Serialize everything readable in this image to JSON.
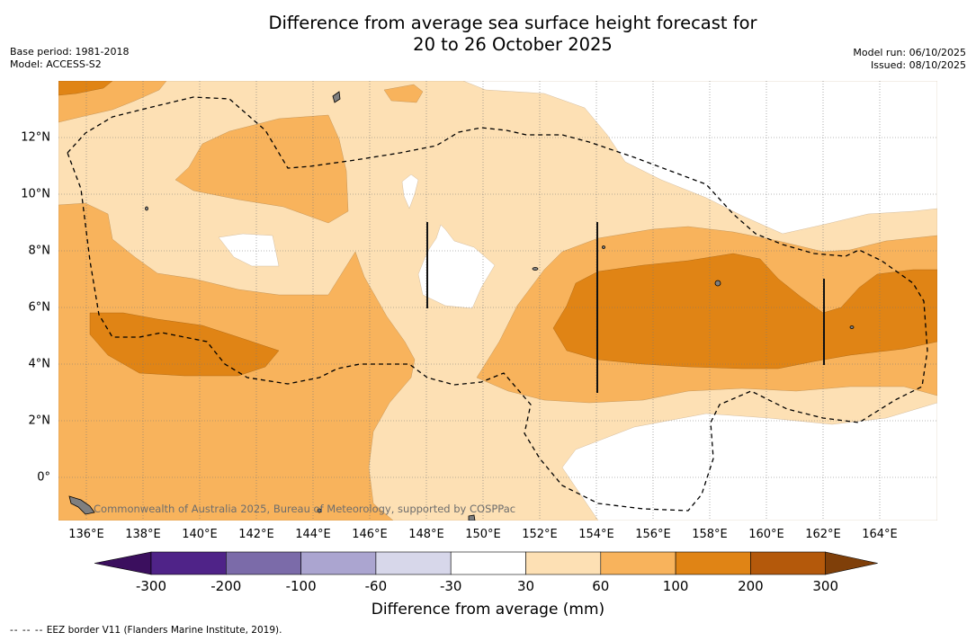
{
  "title": {
    "line1": "Difference from average sea surface height forecast for",
    "line2": "20 to 26 October 2025"
  },
  "meta": {
    "base_period": "Base period: 1981-2018",
    "model": "Model: ACCESS-S2",
    "model_run": "Model run: 06/10/2025",
    "issued": "Issued: 08/10/2025"
  },
  "map": {
    "x_ticks": [
      "136°E",
      "138°E",
      "140°E",
      "142°E",
      "144°E",
      "146°E",
      "148°E",
      "150°E",
      "152°E",
      "154°E",
      "156°E",
      "158°E",
      "160°E",
      "162°E",
      "164°E"
    ],
    "y_ticks": [
      "12°N",
      "10°N",
      "8°N",
      "6°N",
      "4°N",
      "2°N",
      "0°"
    ],
    "credit": "Commonwealth of Australia 2025, Bureau of Meteorology, supported by COSPPac",
    "colors": {
      "c30_60": "#fde0b4",
      "c60_100": "#f8b35c",
      "c100_200": "#e08415",
      "c200_300": "#b4590b",
      "land": "#7f7f7f"
    }
  },
  "colorbar": {
    "labels": [
      "-300",
      "-200",
      "-100",
      "-60",
      "-30",
      "30",
      "60",
      "100",
      "200",
      "300"
    ],
    "colors": [
      "#3b0f5e",
      "#4f2388",
      "#7b6ba9",
      "#aba5d0",
      "#d7d7ea",
      "#ffffff",
      "#fde0b4",
      "#f8b35c",
      "#e08415",
      "#b4590b",
      "#7f3f09"
    ],
    "title": "Difference from average (mm)"
  },
  "footer": {
    "dash": "-- -- --",
    "text": "EEZ border V11 (Flanders Marine Institute, 2019)."
  }
}
